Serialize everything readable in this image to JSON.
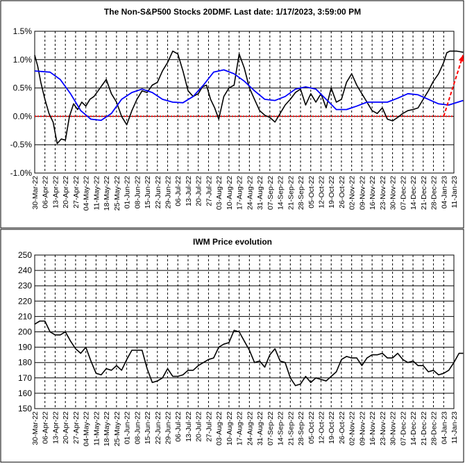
{
  "chart_data": [
    {
      "type": "line",
      "title": "The Non-S&P500 Stocks 20DMF. Last date: 1/17/2023, 3:59:00 PM",
      "ylim": [
        -1.0,
        1.5
      ],
      "yticks": [
        "-1.0%",
        "-0.5%",
        "0.0%",
        "0.5%",
        "1.0%",
        "1.5%"
      ],
      "ytick_values": [
        -1.0,
        -0.5,
        0.0,
        0.5,
        1.0,
        1.5
      ],
      "x_labels": [
        "30-Mar-22",
        "06-Apr-22",
        "13-Apr-22",
        "20-Apr-22",
        "27-Apr-22",
        "04-May-22",
        "11-May-22",
        "18-May-22",
        "25-May-22",
        "01-Jun-22",
        "08-Jun-22",
        "15-Jun-22",
        "22-Jun-22",
        "29-Jun-22",
        "06-Jul-22",
        "13-Jul-22",
        "20-Jul-22",
        "27-Jul-22",
        "03-Aug-22",
        "10-Aug-22",
        "17-Aug-22",
        "24-Aug-22",
        "31-Aug-22",
        "07-Sep-22",
        "14-Sep-22",
        "21-Sep-22",
        "28-Sep-22",
        "05-Oct-22",
        "12-Oct-22",
        "19-Oct-22",
        "26-Oct-22",
        "02-Nov-22",
        "09-Nov-22",
        "16-Nov-22",
        "23-Nov-22",
        "30-Nov-22",
        "07-Dec-22",
        "14-Dec-22",
        "21-Dec-22",
        "28-Dec-22",
        "04-Jan-23",
        "11-Jan-23"
      ],
      "grid": true,
      "reference_line": {
        "y": 0.0,
        "color": "#ff0000",
        "style": "dotted"
      },
      "trend_arrow": {
        "from": [
          40.0,
          0.0
        ],
        "to": [
          41.9,
          1.08
        ],
        "color": "#ff0000",
        "style": "dashed"
      },
      "series": [
        {
          "color": "#000000",
          "x": [
            0,
            0.3,
            0.6,
            1.0,
            1.4,
            1.8,
            2.2,
            2.6,
            3.0,
            3.4,
            3.8,
            4.2,
            4.6,
            5.0,
            5.4,
            5.8,
            6.2,
            6.6,
            7.0,
            7.5,
            8.0,
            8.5,
            9.0,
            9.5,
            10.0,
            10.5,
            11.0,
            11.5,
            12.0,
            12.5,
            13.0,
            13.5,
            14.0,
            14.5,
            15.0,
            15.5,
            16.0,
            16.4,
            16.8,
            17.2,
            17.6,
            18.0,
            18.5,
            19.0,
            19.5,
            20.0,
            20.5,
            21.0,
            21.5,
            22.0,
            22.5,
            23.0,
            23.5,
            24.0,
            24.5,
            25.0,
            25.5,
            26.0,
            26.5,
            27.0,
            27.5,
            28.0,
            28.5,
            29.0,
            29.5,
            30.0,
            30.5,
            31.0,
            31.5,
            32.0,
            32.5,
            33.0,
            33.5,
            34.0,
            34.5,
            35.0,
            35.5,
            36.0,
            36.5,
            37.0,
            37.5,
            38.0,
            38.5,
            39.0,
            39.5,
            40.0,
            40.3,
            40.6,
            41.0,
            41.3,
            41.6,
            41.9
          ],
          "values": [
            1.08,
            0.88,
            0.6,
            0.3,
            0.05,
            -0.1,
            -0.48,
            -0.4,
            -0.42,
            0.0,
            0.22,
            0.12,
            0.25,
            0.18,
            0.3,
            0.35,
            0.45,
            0.55,
            0.65,
            0.4,
            0.25,
            0.0,
            -0.15,
            0.1,
            0.3,
            0.45,
            0.42,
            0.55,
            0.6,
            0.8,
            0.95,
            1.15,
            1.1,
            0.8,
            0.45,
            0.35,
            0.4,
            0.52,
            0.55,
            0.3,
            0.15,
            -0.05,
            0.35,
            0.5,
            0.55,
            1.1,
            0.85,
            0.5,
            0.3,
            0.1,
            0.02,
            -0.02,
            -0.1,
            0.05,
            0.2,
            0.3,
            0.42,
            0.48,
            0.2,
            0.4,
            0.25,
            0.4,
            0.15,
            0.5,
            0.25,
            0.3,
            0.6,
            0.75,
            0.55,
            0.4,
            0.25,
            0.1,
            0.05,
            0.15,
            -0.05,
            -0.08,
            -0.02,
            0.05,
            0.1,
            0.12,
            0.15,
            0.3,
            0.45,
            0.62,
            0.75,
            0.95,
            1.12,
            1.15,
            1.15,
            1.15,
            1.14,
            1.13
          ]
        },
        {
          "color": "#0000ff",
          "x": [
            0,
            1.5,
            2.5,
            3.5,
            4.5,
            5.5,
            6.5,
            7.5,
            8.5,
            9.5,
            10.5,
            11.5,
            12.5,
            13.5,
            14.5,
            15.5,
            16.5,
            17.5,
            18.5,
            19.5,
            20.5,
            21.5,
            22.5,
            23.5,
            24.5,
            25.5,
            26.5,
            27.5,
            28.5,
            29.5,
            30.5,
            31.5,
            32.5,
            33.5,
            34.5,
            35.5,
            36.5,
            37.5,
            38.5,
            39.5,
            40.5,
            41.9
          ],
          "values": [
            0.8,
            0.78,
            0.65,
            0.4,
            0.1,
            -0.05,
            -0.07,
            0.05,
            0.3,
            0.42,
            0.48,
            0.42,
            0.3,
            0.25,
            0.24,
            0.35,
            0.55,
            0.78,
            0.82,
            0.75,
            0.62,
            0.45,
            0.3,
            0.28,
            0.35,
            0.48,
            0.52,
            0.48,
            0.3,
            0.12,
            0.12,
            0.18,
            0.25,
            0.25,
            0.25,
            0.32,
            0.4,
            0.38,
            0.3,
            0.22,
            0.2,
            0.28
          ]
        }
      ]
    },
    {
      "type": "line",
      "title": "IWM Price evolution",
      "ylim": [
        150,
        250
      ],
      "yticks": [
        "150",
        "160",
        "170",
        "180",
        "190",
        "200",
        "210",
        "220",
        "230",
        "240",
        "250"
      ],
      "ytick_values": [
        150,
        160,
        170,
        180,
        190,
        200,
        210,
        220,
        230,
        240,
        250
      ],
      "x_labels": [
        "30-Mar-22",
        "06-Apr-22",
        "13-Apr-22",
        "20-Apr-22",
        "27-Apr-22",
        "04-May-22",
        "11-May-22",
        "18-May-22",
        "25-May-22",
        "01-Jun-22",
        "08-Jun-22",
        "15-Jun-22",
        "22-Jun-22",
        "29-Jun-22",
        "06-Jul-22",
        "13-Jul-22",
        "20-Jul-22",
        "27-Jul-22",
        "03-Aug-22",
        "10-Aug-22",
        "17-Aug-22",
        "24-Aug-22",
        "31-Aug-22",
        "07-Sep-22",
        "14-Sep-22",
        "21-Sep-22",
        "28-Sep-22",
        "05-Oct-22",
        "12-Oct-22",
        "19-Oct-22",
        "26-Oct-22",
        "02-Nov-22",
        "09-Nov-22",
        "16-Nov-22",
        "23-Nov-22",
        "30-Nov-22",
        "07-Dec-22",
        "14-Dec-22",
        "21-Dec-22",
        "28-Dec-22",
        "04-Jan-23",
        "11-Jan-23"
      ],
      "grid": true,
      "series": [
        {
          "color": "#000000",
          "x": [
            0,
            0.5,
            1.0,
            1.5,
            2.0,
            2.5,
            3.0,
            3.5,
            4.0,
            4.5,
            5.0,
            5.5,
            6.0,
            6.5,
            7.0,
            7.5,
            8.0,
            8.5,
            9.0,
            9.5,
            10.0,
            10.5,
            11.0,
            11.5,
            12.0,
            12.5,
            13.0,
            13.5,
            14.0,
            14.5,
            15.0,
            15.5,
            16.0,
            16.5,
            17.0,
            17.5,
            18.0,
            18.5,
            19.0,
            19.5,
            20.0,
            20.5,
            21.0,
            21.5,
            22.0,
            22.5,
            23.0,
            23.5,
            24.0,
            24.5,
            25.0,
            25.5,
            26.0,
            26.5,
            27.0,
            27.5,
            28.0,
            28.5,
            29.0,
            29.5,
            30.0,
            30.5,
            31.0,
            31.5,
            32.0,
            32.5,
            33.0,
            33.5,
            34.0,
            34.5,
            35.0,
            35.5,
            36.0,
            36.5,
            37.0,
            37.5,
            38.0,
            38.5,
            39.0,
            39.5,
            40.0,
            40.5,
            41.0,
            41.5,
            41.9
          ],
          "values": [
            205,
            207,
            207,
            200,
            198,
            198,
            200,
            194,
            189,
            186,
            190,
            181,
            173,
            172,
            176,
            175,
            178,
            175,
            182,
            188,
            188,
            188,
            176,
            167,
            168,
            170,
            176,
            171,
            171,
            172,
            175,
            175,
            178,
            180,
            182,
            183,
            190,
            192,
            193,
            201,
            200,
            194,
            188,
            180,
            181,
            177,
            185,
            189,
            181,
            180,
            170,
            165,
            166,
            171,
            167,
            170,
            169,
            168,
            171,
            174,
            182,
            184,
            183,
            183,
            178,
            183,
            185,
            185,
            186,
            183,
            183,
            186,
            182,
            180,
            181,
            178,
            178,
            174,
            175,
            172,
            173,
            175,
            180,
            186,
            186
          ]
        }
      ]
    }
  ]
}
